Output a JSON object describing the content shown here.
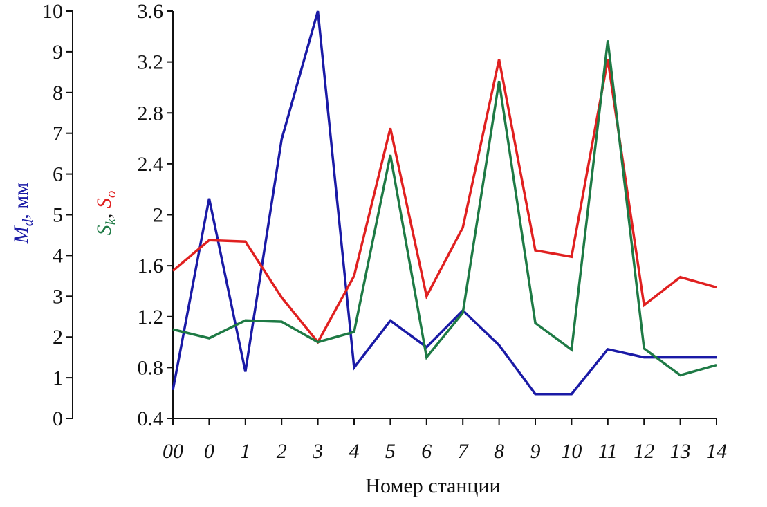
{
  "chart_data": {
    "type": "line",
    "categories": [
      "00",
      "0",
      "1",
      "2",
      "3",
      "4",
      "5",
      "6",
      "7",
      "8",
      "9",
      "10",
      "11",
      "12",
      "13",
      "14"
    ],
    "xlabel": "Номер станции",
    "left_axis": {
      "label_main": "M",
      "label_sub": "d",
      "label_rest": ", мм",
      "color": "#1a1aa6",
      "ylim": [
        0,
        10
      ],
      "ticks": [
        "0",
        "1",
        "2",
        "3",
        "4",
        "5",
        "6",
        "7",
        "8",
        "9",
        "10"
      ]
    },
    "right_axis": {
      "label_parts": [
        {
          "main": "S",
          "sub": "k",
          "color": "#1e7a45"
        },
        {
          "sep": ", "
        },
        {
          "main": "S",
          "sub": "o",
          "color": "#e02020"
        }
      ],
      "ylim": [
        0.4,
        3.6
      ],
      "ticks": [
        "0.4",
        "0.8",
        "1.2",
        "1.6",
        "2",
        "2.4",
        "2.8",
        "3.2",
        "3.6"
      ]
    },
    "series": [
      {
        "axis": "left",
        "color": "#1a1aa6",
        "values": [
          0.7,
          5.4,
          1.15,
          6.85,
          10.0,
          1.25,
          2.4,
          1.75,
          2.65,
          1.8,
          0.6,
          0.6,
          1.7,
          1.5,
          1.5,
          1.5
        ]
      },
      {
        "axis": "right",
        "color": "#e02020",
        "values": [
          1.56,
          1.8,
          1.79,
          1.35,
          1.0,
          1.52,
          2.68,
          1.36,
          1.9,
          3.22,
          1.72,
          1.67,
          3.22,
          1.29,
          1.51,
          1.43
        ]
      },
      {
        "axis": "right",
        "color": "#1e7a45",
        "values": [
          1.1,
          1.03,
          1.17,
          1.16,
          1.0,
          1.08,
          2.47,
          0.88,
          1.23,
          3.05,
          1.15,
          0.94,
          3.37,
          0.95,
          0.74,
          0.82
        ]
      }
    ]
  }
}
